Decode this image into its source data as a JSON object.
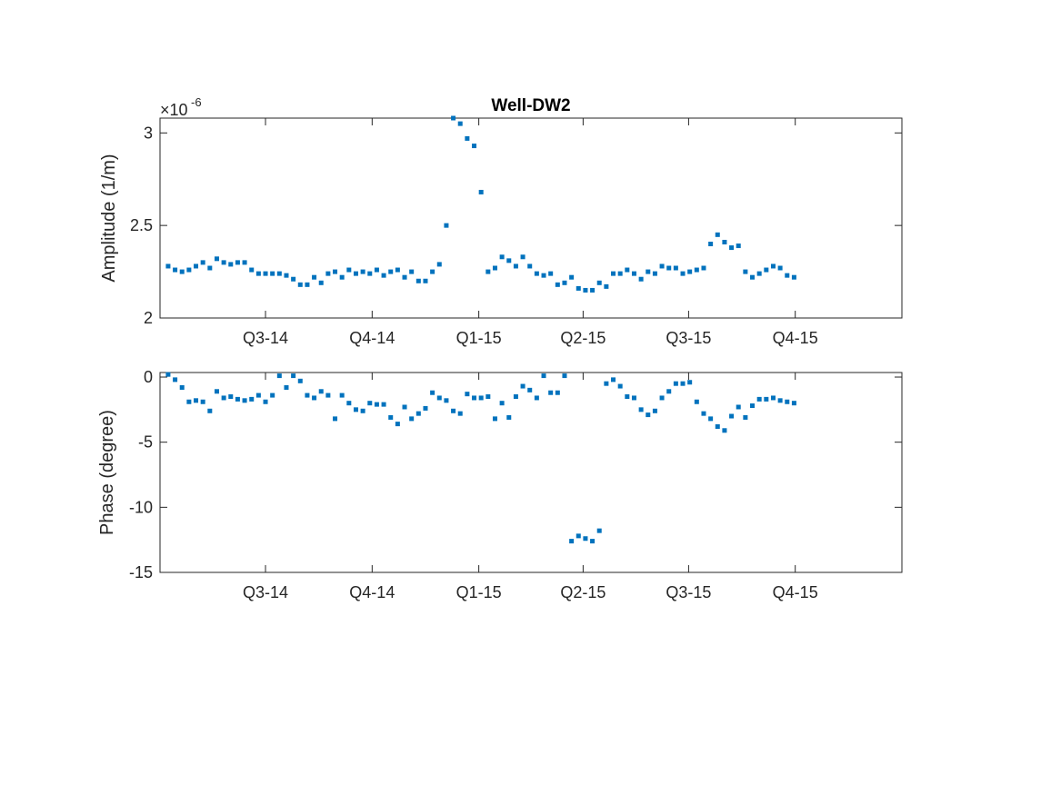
{
  "chart_data": [
    {
      "type": "scatter",
      "title": "Well-DW2",
      "xlabel": "",
      "ylabel": "Amplitude (1/m)",
      "y_exponent_base": "×10",
      "y_exponent_power": "-6",
      "x_tick_labels": [
        "Q3-14",
        "Q4-14",
        "Q1-15",
        "Q2-15",
        "Q3-15",
        "Q4-15"
      ],
      "x_tick_dates": [
        "2014-07-01",
        "2014-10-01",
        "2015-01-01",
        "2015-04-01",
        "2015-07-01",
        "2015-10-01"
      ],
      "xlim": [
        "2014-04-01",
        "2016-01-01"
      ],
      "ylim": [
        2.0,
        3.08
      ],
      "y_ticks": [
        2,
        2.5,
        3
      ],
      "y_tick_labels": [
        "2",
        "2.5",
        "3"
      ],
      "marker_color": "#0072BD",
      "series": [
        {
          "x": [
            "2014-04-08",
            "2014-04-14",
            "2014-04-20",
            "2014-04-26",
            "2014-05-02",
            "2014-05-08",
            "2014-05-14",
            "2014-05-20",
            "2014-05-26",
            "2014-06-01",
            "2014-06-07",
            "2014-06-13",
            "2014-06-19",
            "2014-06-25",
            "2014-07-01",
            "2014-07-07",
            "2014-07-13",
            "2014-07-19",
            "2014-07-25",
            "2014-07-31",
            "2014-08-06",
            "2014-08-12",
            "2014-08-18",
            "2014-08-24",
            "2014-08-30",
            "2014-09-05",
            "2014-09-11",
            "2014-09-17",
            "2014-09-23",
            "2014-09-29",
            "2014-10-05",
            "2014-10-11",
            "2014-10-17",
            "2014-10-23",
            "2014-10-29",
            "2014-11-04",
            "2014-11-10",
            "2014-11-16",
            "2014-11-22",
            "2014-11-28",
            "2014-12-04",
            "2014-12-10",
            "2014-12-16",
            "2014-12-22",
            "2014-12-28",
            "2015-01-03",
            "2015-01-09",
            "2015-01-15",
            "2015-01-21",
            "2015-01-27",
            "2015-02-02",
            "2015-02-08",
            "2015-02-14",
            "2015-02-20",
            "2015-02-26",
            "2015-03-04",
            "2015-03-10",
            "2015-03-16",
            "2015-03-22",
            "2015-03-28",
            "2015-04-03",
            "2015-04-09",
            "2015-04-15",
            "2015-04-21",
            "2015-04-27",
            "2015-05-03",
            "2015-05-09",
            "2015-05-15",
            "2015-05-21",
            "2015-05-27",
            "2015-06-02",
            "2015-06-08",
            "2015-06-14",
            "2015-06-20",
            "2015-06-26",
            "2015-07-02",
            "2015-07-08",
            "2015-07-14",
            "2015-07-20",
            "2015-07-26",
            "2015-08-01",
            "2015-08-07",
            "2015-08-13",
            "2015-08-19",
            "2015-08-25",
            "2015-08-31",
            "2015-09-06",
            "2015-09-12",
            "2015-09-18",
            "2015-09-24",
            "2015-09-30"
          ],
          "y": [
            2.28,
            2.26,
            2.25,
            2.26,
            2.28,
            2.3,
            2.27,
            2.32,
            2.3,
            2.29,
            2.3,
            2.3,
            2.26,
            2.24,
            2.24,
            2.24,
            2.24,
            2.23,
            2.21,
            2.18,
            2.18,
            2.22,
            2.19,
            2.24,
            2.25,
            2.22,
            2.26,
            2.24,
            2.25,
            2.24,
            2.26,
            2.23,
            2.25,
            2.26,
            2.22,
            2.25,
            2.2,
            2.2,
            2.25,
            2.29,
            2.5,
            3.08,
            3.05,
            2.97,
            2.93,
            2.68,
            2.25,
            2.27,
            2.33,
            2.31,
            2.28,
            2.33,
            2.28,
            2.24,
            2.23,
            2.24,
            2.18,
            2.19,
            2.22,
            2.16,
            2.15,
            2.15,
            2.19,
            2.17,
            2.24,
            2.24,
            2.26,
            2.24,
            2.21,
            2.25,
            2.24,
            2.28,
            2.27,
            2.27,
            2.24,
            2.25,
            2.26,
            2.27,
            2.4,
            2.45,
            2.41,
            2.38,
            2.39,
            2.25,
            2.22,
            2.24,
            2.26,
            2.28,
            2.27,
            2.23,
            2.22
          ]
        }
      ]
    },
    {
      "type": "scatter",
      "title": "",
      "xlabel": "",
      "ylabel": "Phase (degree)",
      "x_tick_labels": [
        "Q3-14",
        "Q4-14",
        "Q1-15",
        "Q2-15",
        "Q3-15",
        "Q4-15"
      ],
      "x_tick_dates": [
        "2014-07-01",
        "2014-10-01",
        "2015-01-01",
        "2015-04-01",
        "2015-07-01",
        "2015-10-01"
      ],
      "xlim": [
        "2014-04-01",
        "2016-01-01"
      ],
      "ylim": [
        -15,
        0.35
      ],
      "y_ticks": [
        0,
        -5,
        -10,
        -15
      ],
      "y_tick_labels": [
        "0",
        "-5",
        "-10",
        "-15"
      ],
      "marker_color": "#0072BD",
      "series": [
        {
          "x": [
            "2014-04-08",
            "2014-04-14",
            "2014-04-20",
            "2014-04-26",
            "2014-05-02",
            "2014-05-08",
            "2014-05-14",
            "2014-05-20",
            "2014-05-26",
            "2014-06-01",
            "2014-06-07",
            "2014-06-13",
            "2014-06-19",
            "2014-06-25",
            "2014-07-01",
            "2014-07-07",
            "2014-07-13",
            "2014-07-19",
            "2014-07-25",
            "2014-07-31",
            "2014-08-06",
            "2014-08-12",
            "2014-08-18",
            "2014-08-24",
            "2014-08-30",
            "2014-09-05",
            "2014-09-11",
            "2014-09-17",
            "2014-09-23",
            "2014-09-29",
            "2014-10-05",
            "2014-10-11",
            "2014-10-17",
            "2014-10-23",
            "2014-10-29",
            "2014-11-04",
            "2014-11-10",
            "2014-11-16",
            "2014-11-22",
            "2014-11-28",
            "2014-12-04",
            "2014-12-10",
            "2014-12-16",
            "2014-12-22",
            "2014-12-28",
            "2015-01-03",
            "2015-01-09",
            "2015-01-15",
            "2015-01-21",
            "2015-01-27",
            "2015-02-02",
            "2015-02-08",
            "2015-02-14",
            "2015-02-20",
            "2015-02-26",
            "2015-03-04",
            "2015-03-10",
            "2015-03-16",
            "2015-03-22",
            "2015-03-28",
            "2015-04-03",
            "2015-04-09",
            "2015-04-15",
            "2015-04-21",
            "2015-04-27",
            "2015-05-03",
            "2015-05-09",
            "2015-05-15",
            "2015-05-21",
            "2015-05-27",
            "2015-06-02",
            "2015-06-08",
            "2015-06-14",
            "2015-06-20",
            "2015-06-26",
            "2015-07-02",
            "2015-07-08",
            "2015-07-14",
            "2015-07-20",
            "2015-07-26",
            "2015-08-01",
            "2015-08-07",
            "2015-08-13",
            "2015-08-19",
            "2015-08-25",
            "2015-08-31",
            "2015-09-06",
            "2015-09-12",
            "2015-09-18",
            "2015-09-24",
            "2015-09-30"
          ],
          "y": [
            0.2,
            -0.2,
            -0.8,
            -1.9,
            -1.8,
            -1.9,
            -2.6,
            -1.1,
            -1.6,
            -1.5,
            -1.7,
            -1.8,
            -1.7,
            -1.4,
            -1.9,
            -1.4,
            0.1,
            -0.8,
            0.1,
            -0.3,
            -1.4,
            -1.6,
            -1.1,
            -1.4,
            -3.2,
            -1.4,
            -2.0,
            -2.5,
            -2.6,
            -2.0,
            -2.1,
            -2.1,
            -3.1,
            -3.6,
            -2.3,
            -3.2,
            -2.8,
            -2.4,
            -1.2,
            -1.6,
            -1.8,
            -2.6,
            -2.8,
            -1.3,
            -1.6,
            -1.6,
            -1.5,
            -3.2,
            -2.0,
            -3.1,
            -1.5,
            -0.7,
            -1.0,
            -1.6,
            0.1,
            -1.2,
            -1.2,
            0.1,
            -12.6,
            -12.2,
            -12.4,
            -12.6,
            -11.8,
            -0.5,
            -0.2,
            -0.7,
            -1.5,
            -1.6,
            -2.5,
            -2.9,
            -2.6,
            -1.6,
            -1.1,
            -0.5,
            -0.5,
            -0.4,
            -1.9,
            -2.8,
            -3.2,
            -3.8,
            -4.1,
            -3.0,
            -2.3,
            -3.1,
            -2.2,
            -1.7,
            -1.7,
            -1.6,
            -1.8,
            -1.9,
            -2.0
          ]
        }
      ]
    }
  ]
}
